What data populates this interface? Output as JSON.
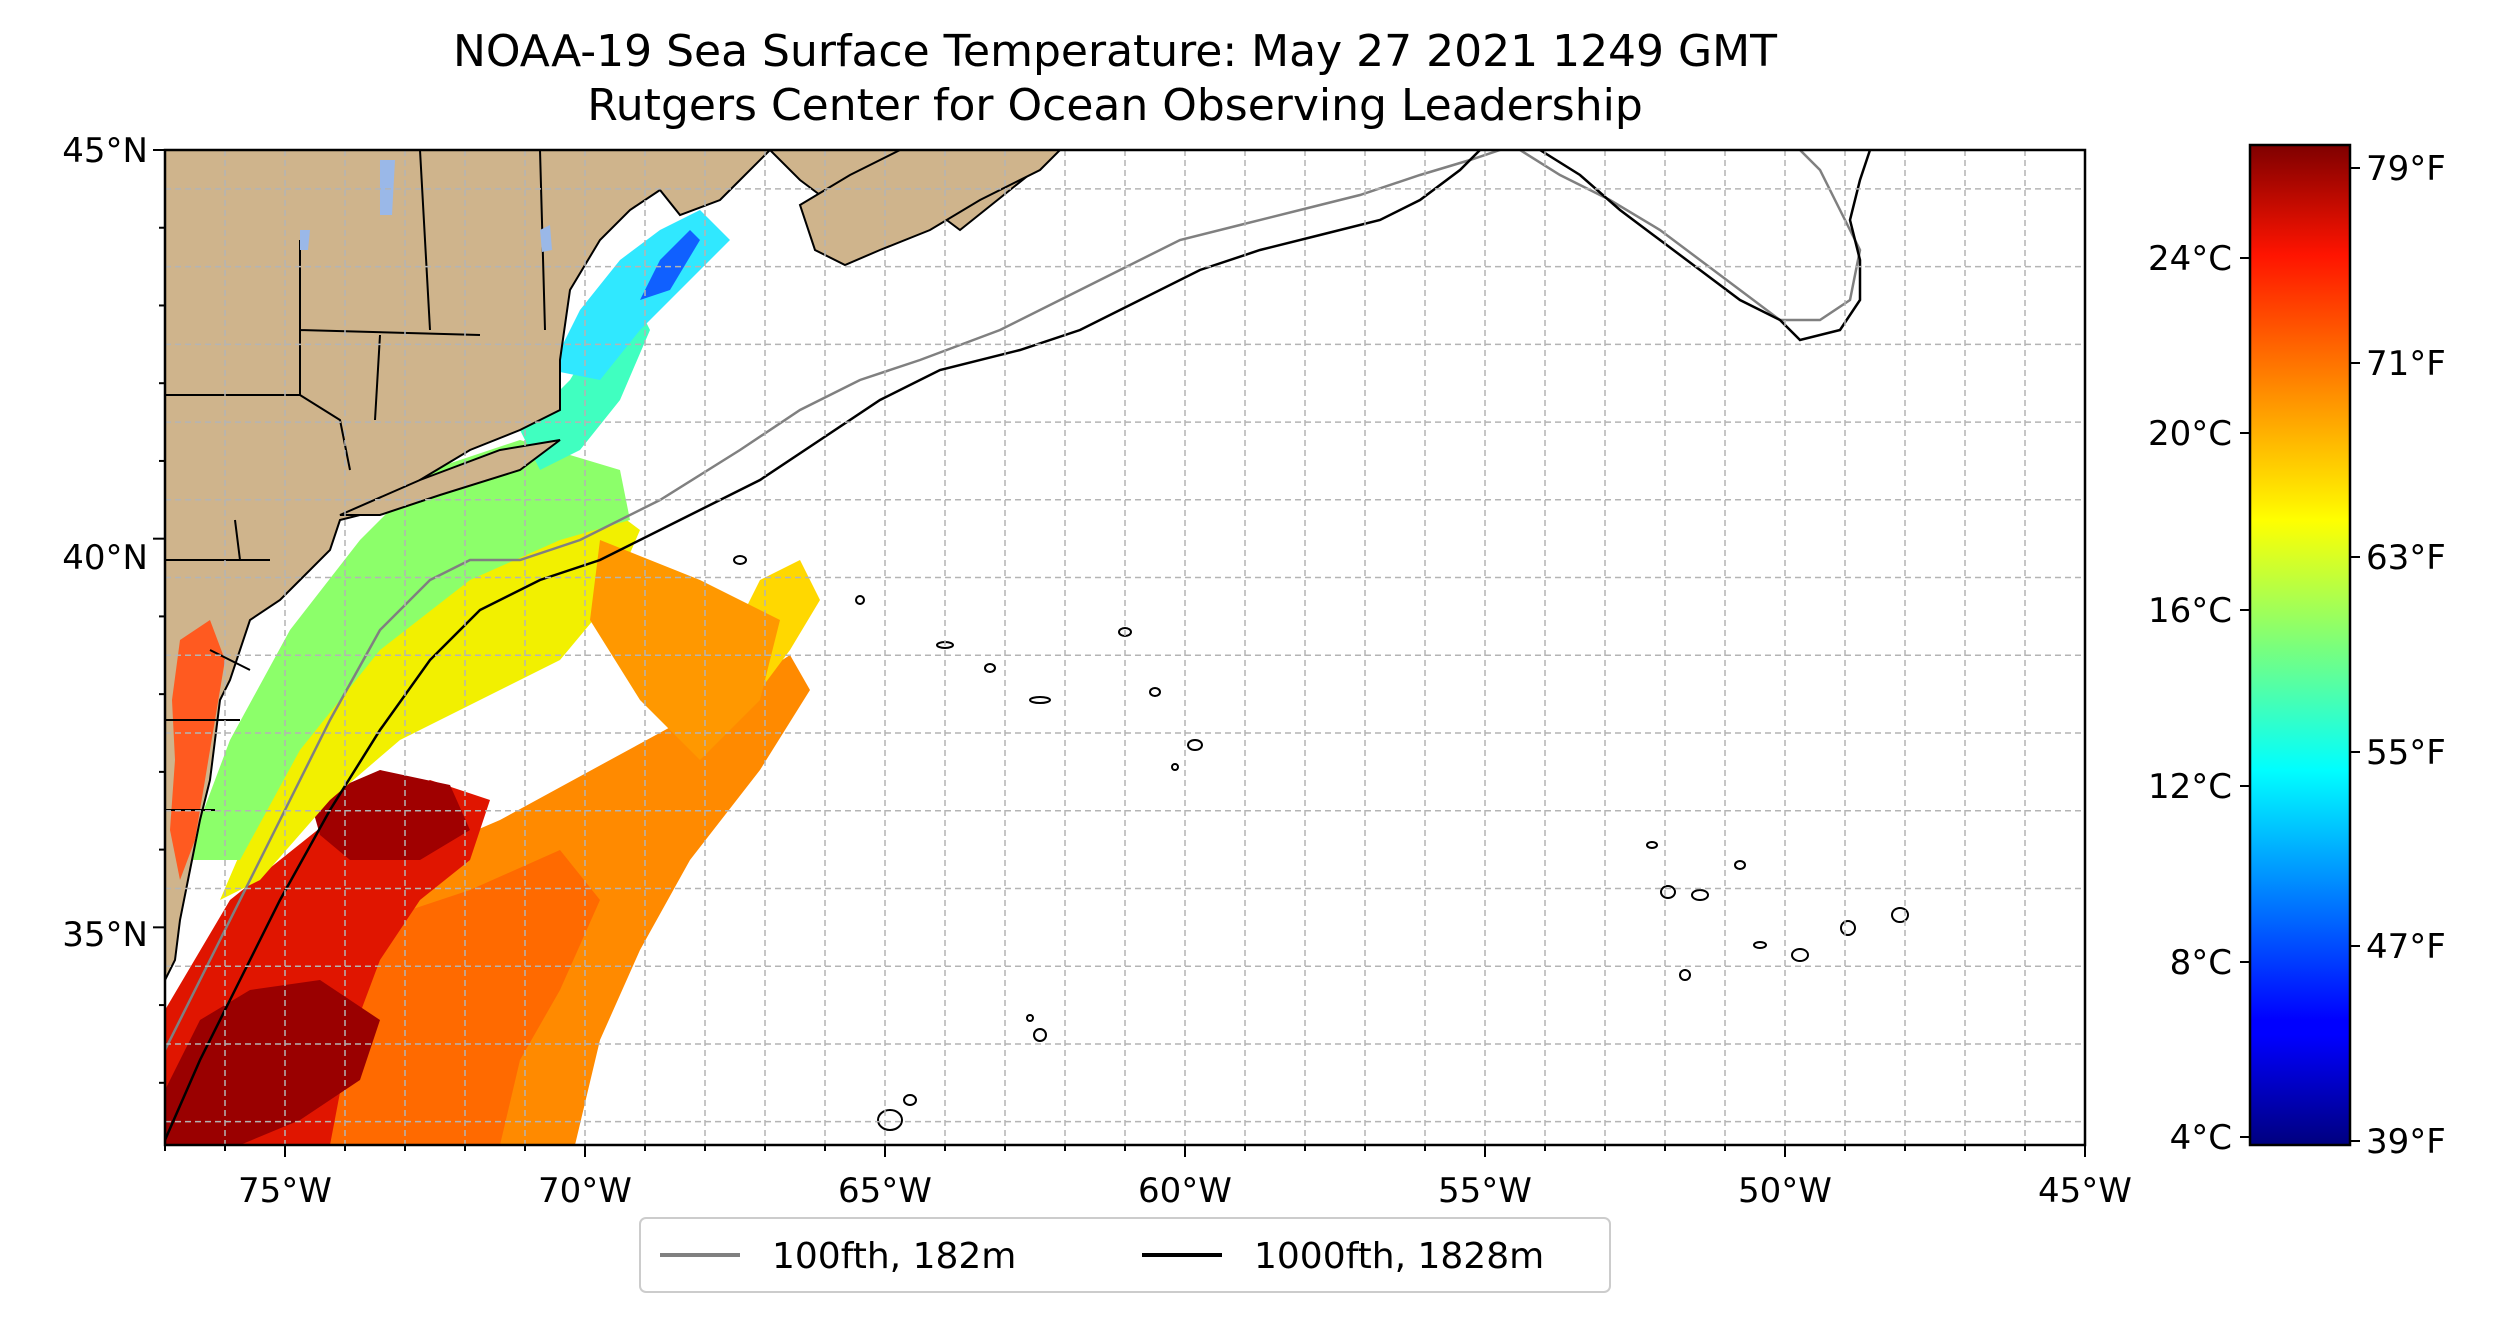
{
  "title": {
    "line1": "NOAA-19 Sea Surface Temperature: May 27 2021 1249 GMT",
    "line2": "Rutgers Center for Ocean Observing Leadership"
  },
  "map": {
    "lon_range": [
      -77,
      -45
    ],
    "lat_range": [
      32.2,
      45
    ],
    "x_ticks": [
      "75°W",
      "70°W",
      "65°W",
      "60°W",
      "55°W",
      "50°W",
      "45°W"
    ],
    "y_ticks": [
      "45°N",
      "40°N",
      "35°N"
    ],
    "gridlines": true,
    "land_color": "#cfb48c",
    "lake_color": "#9ab8e8"
  },
  "legend": {
    "placement": "below map",
    "items": [
      {
        "label": "100fth, 182m",
        "color": "#808080"
      },
      {
        "label": "1000fth, 1828m",
        "color": "#000000"
      }
    ]
  },
  "colorbar": {
    "colormap": "jet",
    "celsius_ticks": [
      "24°C",
      "20°C",
      "16°C",
      "12°C",
      "8°C",
      "4°C"
    ],
    "fahrenheit_ticks": [
      "79°F",
      "71°F",
      "63°F",
      "55°F",
      "47°F",
      "39°F"
    ]
  }
}
